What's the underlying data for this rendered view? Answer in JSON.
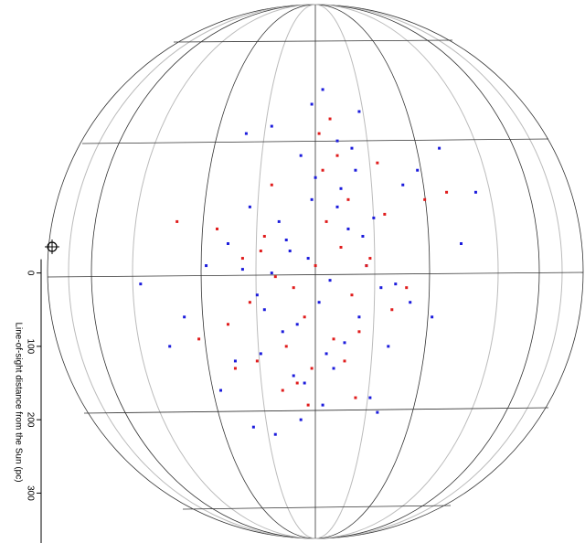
{
  "chart_data": {
    "type": "scatter",
    "y_label": "Line-of-sight distance from the Sun (pc)",
    "xlim": [
      -433,
      370
    ],
    "ylim": [
      -372,
      368
    ],
    "yticks": [
      0,
      100,
      200,
      300
    ],
    "series": [
      {
        "color": "#1c1cdc",
        "x": [
          -10,
          20,
          -40,
          45,
          5,
          -60,
          70,
          -25,
          30,
          -80,
          90,
          -5,
          15,
          -50,
          60,
          -35,
          40,
          -100,
          110,
          0,
          25,
          -70,
          80,
          -15,
          35,
          -120,
          130,
          -45,
          55,
          -90,
          100,
          10,
          -20,
          65,
          -75,
          -150,
          160,
          -30,
          50,
          -110,
          120,
          -180,
          200,
          -200,
          140,
          -60,
          75,
          -5,
          85,
          -95,
          -130,
          170,
          -240,
          220,
          -20,
          10,
          60,
          -55,
          30,
          -85
        ],
        "values": [
          -20,
          10,
          -45,
          -60,
          40,
          0,
          -10,
          70,
          -90,
          30,
          20,
          -100,
          110,
          -70,
          60,
          -30,
          95,
          -5,
          15,
          -130,
          130,
          50,
          -75,
          150,
          -115,
          -40,
          40,
          80,
          -140,
          -90,
          100,
          180,
          -160,
          -50,
          110,
          -10,
          60,
          140,
          -170,
          120,
          -120,
          60,
          -40,
          100,
          -140,
          -200,
          170,
          -230,
          190,
          -190,
          160,
          -170,
          15,
          -110,
          200,
          -250,
          -220,
          220,
          -180,
          210
        ]
      },
      {
        "color": "#e01c1c",
        "x": [
          0,
          -30,
          35,
          -55,
          50,
          15,
          -15,
          -70,
          75,
          25,
          -40,
          45,
          -90,
          95,
          -5,
          10,
          -100,
          60,
          -60,
          30,
          -120,
          125,
          -25,
          85,
          -80,
          105,
          -135,
          5,
          -45,
          150,
          -160,
          40,
          -10,
          70,
          -75,
          20,
          -190,
          180,
          -110,
          55
        ],
        "values": [
          -10,
          20,
          -35,
          5,
          30,
          -70,
          60,
          -50,
          -20,
          90,
          100,
          -100,
          40,
          -80,
          130,
          -140,
          -20,
          80,
          -120,
          -160,
          70,
          20,
          150,
          -150,
          120,
          50,
          -60,
          -190,
          160,
          -100,
          90,
          120,
          180,
          -10,
          -30,
          -210,
          -70,
          -110,
          130,
          170
        ]
      }
    ]
  }
}
